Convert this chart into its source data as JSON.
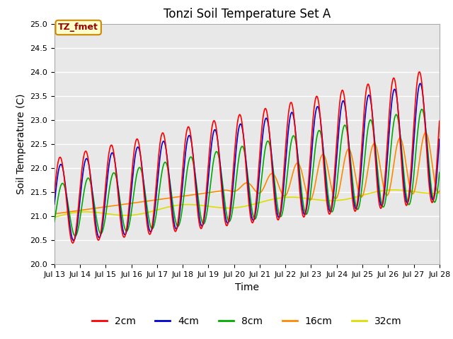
{
  "title": "Tonzi Soil Temperature Set A",
  "xlabel": "Time",
  "ylabel": "Soil Temperature (C)",
  "ylim": [
    20.0,
    25.0
  ],
  "colors": {
    "2cm": "#ff0000",
    "4cm": "#0000cc",
    "8cm": "#00aa00",
    "16cm": "#ff8800",
    "32cm": "#dddd00"
  },
  "legend_labels": [
    "2cm",
    "4cm",
    "8cm",
    "16cm",
    "32cm"
  ],
  "annotation_text": "TZ_fmet",
  "annotation_bbox_facecolor": "#ffffcc",
  "annotation_bbox_edgecolor": "#cc8800",
  "background_color": "#e8e8e8",
  "title_fontsize": 12,
  "axis_label_fontsize": 10,
  "tick_fontsize": 8,
  "linewidth": 1.2,
  "x_tick_labels": [
    "Jul 13",
    "Jul 14",
    "Jul 15",
    "Jul 16",
    "Jul 17",
    "Jul 18",
    "Jul 19",
    "Jul 20",
    "Jul 21",
    "Jul 22",
    "Jul 23",
    "Jul 24",
    "Jul 25",
    "Jul 26",
    "Jul 27",
    "Jul 28"
  ]
}
